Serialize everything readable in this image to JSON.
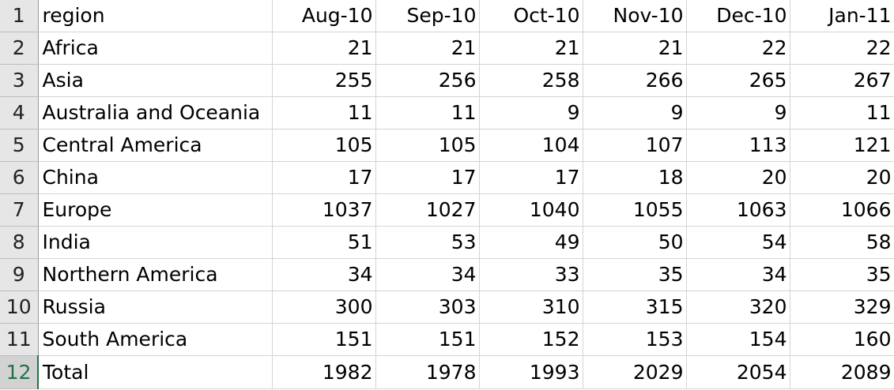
{
  "sheet": {
    "header_row": {
      "row_num": "1",
      "label": "region",
      "months": [
        "Aug-10",
        "Sep-10",
        "Oct-10",
        "Nov-10",
        "Dec-10",
        "Jan-11"
      ]
    },
    "rows": [
      {
        "row_num": "2",
        "label": "Africa",
        "values": [
          "21",
          "21",
          "21",
          "21",
          "22",
          "22"
        ]
      },
      {
        "row_num": "3",
        "label": "Asia",
        "values": [
          "255",
          "256",
          "258",
          "266",
          "265",
          "267"
        ]
      },
      {
        "row_num": "4",
        "label": "Australia and Oceania",
        "values": [
          "11",
          "11",
          "9",
          "9",
          "9",
          "11"
        ]
      },
      {
        "row_num": "5",
        "label": "Central America",
        "values": [
          "105",
          "105",
          "104",
          "107",
          "113",
          "121"
        ]
      },
      {
        "row_num": "6",
        "label": "China",
        "values": [
          "17",
          "17",
          "17",
          "18",
          "20",
          "20"
        ]
      },
      {
        "row_num": "7",
        "label": "Europe",
        "values": [
          "1037",
          "1027",
          "1040",
          "1055",
          "1063",
          "1066"
        ]
      },
      {
        "row_num": "8",
        "label": "India",
        "values": [
          "51",
          "53",
          "49",
          "50",
          "54",
          "58"
        ]
      },
      {
        "row_num": "9",
        "label": "Northern America",
        "values": [
          "34",
          "34",
          "33",
          "35",
          "34",
          "35"
        ]
      },
      {
        "row_num": "10",
        "label": "Russia",
        "values": [
          "300",
          "303",
          "310",
          "315",
          "320",
          "329"
        ]
      },
      {
        "row_num": "11",
        "label": "South America",
        "values": [
          "151",
          "151",
          "152",
          "153",
          "154",
          "160"
        ]
      },
      {
        "row_num": "12",
        "label": "Total",
        "values": [
          "1982",
          "1978",
          "1993",
          "2029",
          "2054",
          "2089"
        ]
      }
    ],
    "selected_row": "12",
    "accent_color": "#217346"
  }
}
